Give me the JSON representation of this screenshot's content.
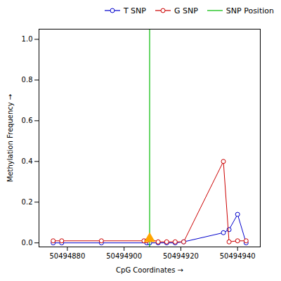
{
  "chart_data": {
    "type": "line",
    "xlabel": "CpG Coordinates",
    "ylabel": "Methylation Frequency",
    "xlim": [
      50494870,
      50494948
    ],
    "ylim": [
      -0.02,
      1.05
    ],
    "xticks": [
      50494880,
      50494900,
      50494920,
      50494940
    ],
    "yticks": [
      {
        "value": 0,
        "label": "0.0"
      },
      0.2,
      0.4,
      0.6,
      0.8,
      {
        "value": 1,
        "label": "1.0"
      }
    ],
    "legend": "right",
    "series": [
      {
        "name": "T SNP",
        "type": "line",
        "color": "#0000cc",
        "marker": "circle",
        "x": [
          50494875,
          50494878,
          50494892,
          50494908,
          50494909,
          50494912,
          50494915,
          50494918,
          50494921,
          50494935,
          50494937,
          50494940,
          50494943
        ],
        "values": [
          0.0,
          0.0,
          0.0,
          0.0,
          0.0,
          0.0,
          0.0,
          0.0,
          0.005,
          0.05,
          0.065,
          0.14,
          0.0
        ]
      },
      {
        "name": "G SNP",
        "type": "line",
        "color": "#cc0000",
        "marker": "circle",
        "x": [
          50494875,
          50494878,
          50494892,
          50494907,
          50494908,
          50494909,
          50494912,
          50494915,
          50494918,
          50494921,
          50494935,
          50494937,
          50494940,
          50494943
        ],
        "values": [
          0.01,
          0.01,
          0.01,
          0.01,
          0.01,
          0.02,
          0.005,
          0.005,
          0.005,
          0.005,
          0.4,
          0.005,
          0.01,
          0.01
        ]
      },
      {
        "name": "SNP Position",
        "type": "vline",
        "color": "#00bb00",
        "x": [
          50494909
        ]
      },
      {
        "type": "scatter",
        "color": "#FFA500",
        "marker": "triangle",
        "x": [
          50494909
        ],
        "values": [
          0.02
        ]
      }
    ]
  }
}
